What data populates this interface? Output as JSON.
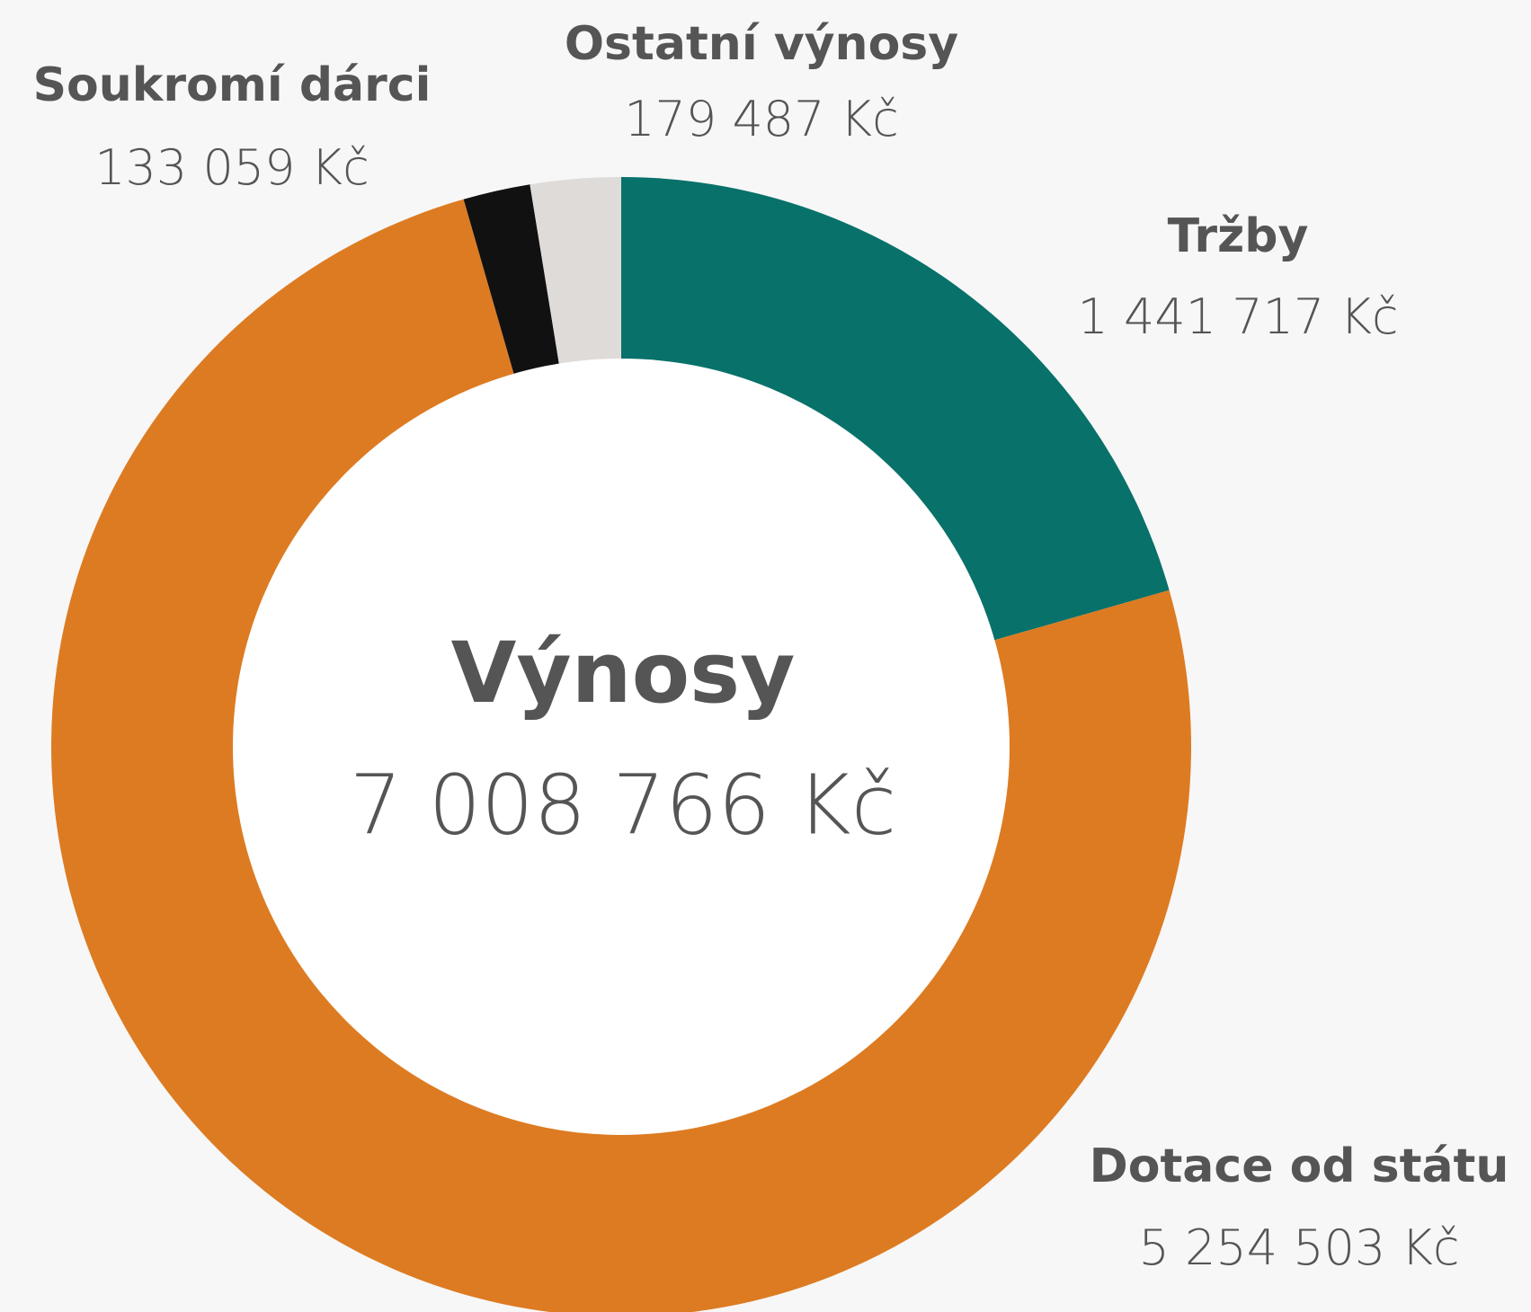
{
  "chart_data": {
    "type": "donut",
    "center_title": "Výnosy",
    "total": 7008766,
    "total_label": "7 008 766 Kč",
    "categories": [
      "Tržby",
      "Dotace od státu",
      "Soukromí dárci",
      "Ostatní výnosy"
    ],
    "values": [
      1441717,
      5254503,
      133059,
      179487
    ],
    "value_labels": [
      "1 441 717 Kč",
      "5 254 503 Kč",
      "133 059 Kč",
      "179 487 Kč"
    ],
    "colors": [
      "#08716a",
      "#dd7b22",
      "#111111",
      "#dedbd9"
    ]
  }
}
